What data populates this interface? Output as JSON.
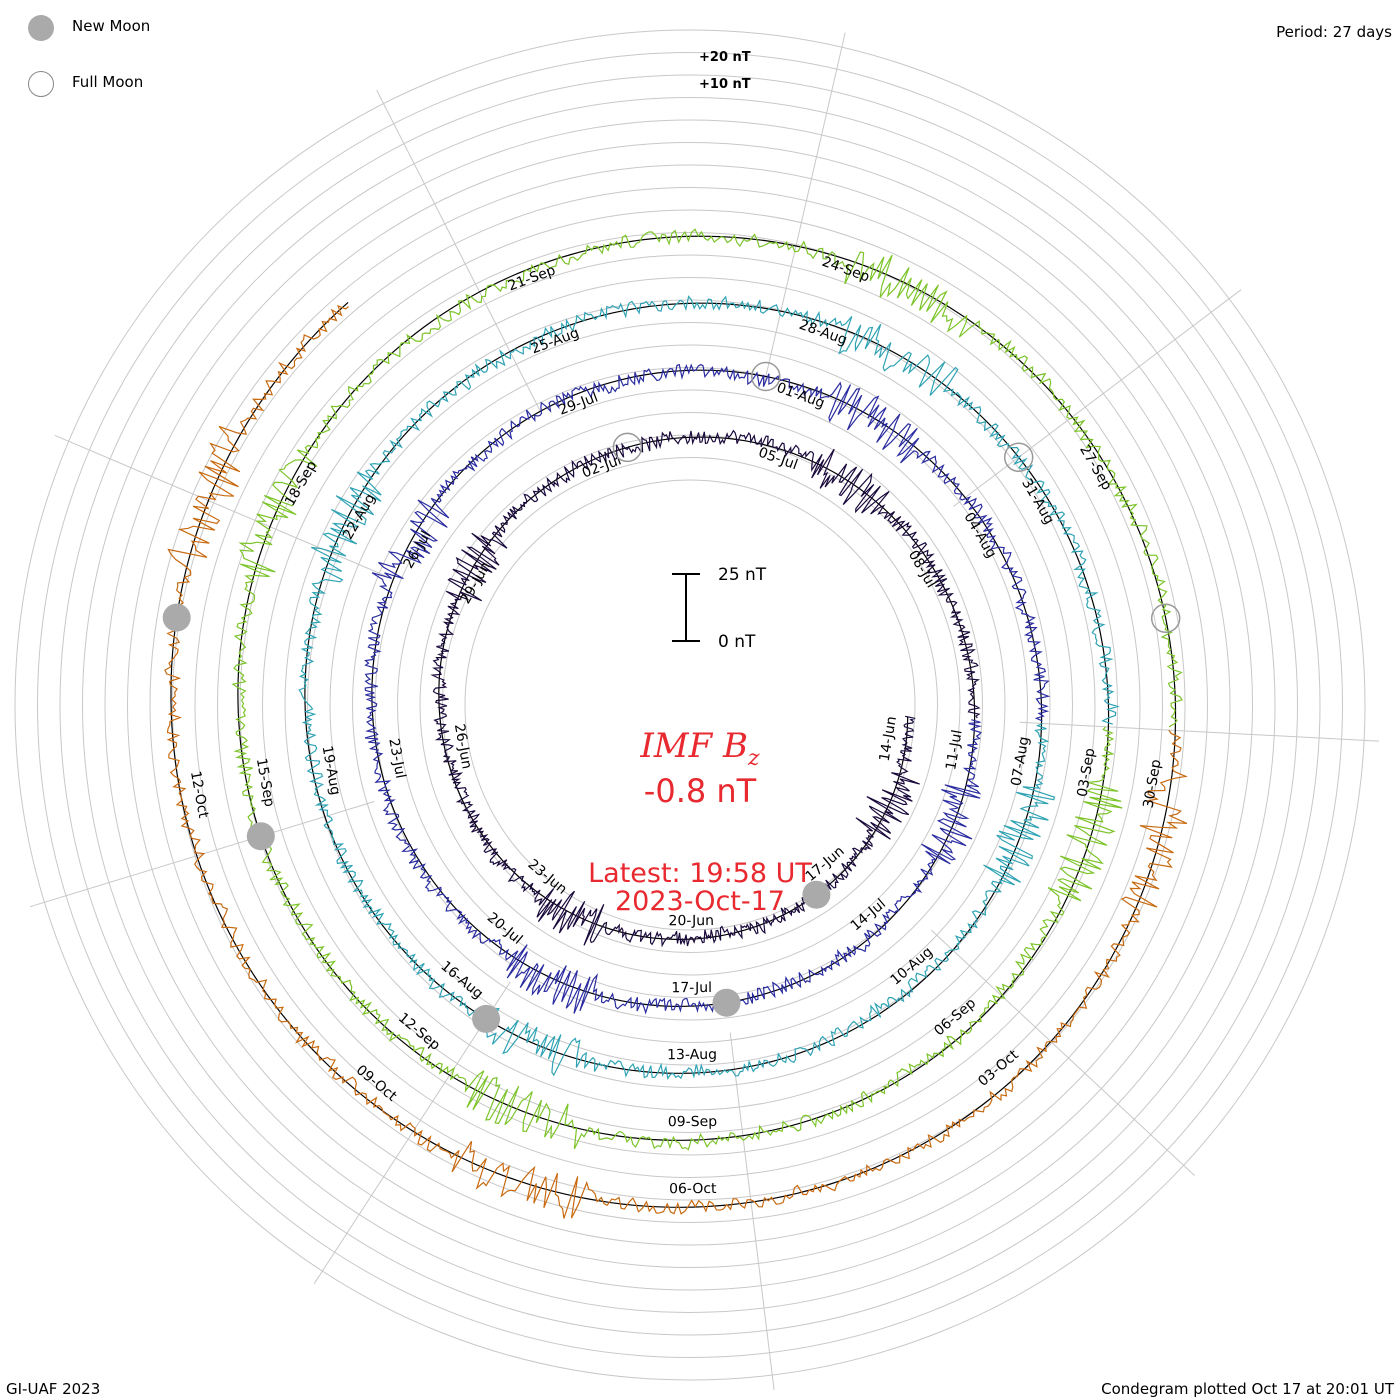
{
  "header": {
    "period_text": "Period: 27 days"
  },
  "legend": {
    "new_moon": {
      "label": "New Moon",
      "icon": "filled-circle-icon",
      "color": "#aaaaaa"
    },
    "full_moon": {
      "label": "Full Moon",
      "icon": "hollow-circle-icon",
      "color": "#888888"
    }
  },
  "footer": {
    "credit": "GI-UAF 2023",
    "plotted": "Condegram plotted Oct 17 at 20:01 UT"
  },
  "center": {
    "title_prefix": "IMF B",
    "title_sub": "z",
    "value": "-0.8 nT",
    "latest_time": "Latest: 19:58 UT",
    "latest_date": "2023-Oct-17"
  },
  "chart_data": {
    "type": "line",
    "subtype": "spiral condegram",
    "quantity": "IMF Bz",
    "unit": "nT",
    "period_days": 27,
    "start_date": "2023-06-14",
    "end_date": "2023-10-17",
    "scale_bar": {
      "top_label": "25 nT",
      "bottom_label": "0 nT",
      "value_nT": 25
    },
    "ring_scale_labels": [
      "+20 nT",
      "+10 nT"
    ],
    "latest_value_nT": -0.8,
    "series": [
      {
        "name": "",
        "days": [
          0,
          27
        ],
        "color": "#1a0a3c",
        "date_labels": [
          "14-Jun",
          "17-Jun",
          "20-Jun",
          "23-Jun",
          "26-Jun",
          "29-Jun",
          "02-Jul",
          "05-Jul",
          "08-Jul"
        ]
      },
      {
        "name": "",
        "days": [
          27,
          54
        ],
        "color": "#2a2ca0",
        "date_labels": [
          "11-Jul",
          "14-Jul",
          "17-Jul",
          "20-Jul",
          "23-Jul",
          "26-Jul",
          "29-Jul",
          "01-Aug",
          "04-Aug"
        ]
      },
      {
        "name": "",
        "days": [
          54,
          81
        ],
        "color": "#2fa3b4",
        "date_labels": [
          "07-Aug",
          "10-Aug",
          "13-Aug",
          "16-Aug",
          "19-Aug",
          "22-Aug",
          "25-Aug",
          "28-Aug",
          "31-Aug"
        ]
      },
      {
        "name": "",
        "days": [
          81,
          108
        ],
        "color": "#7cc42a",
        "date_labels": [
          "03-Sep",
          "06-Sep",
          "09-Sep",
          "12-Sep",
          "15-Sep",
          "18-Sep",
          "21-Sep",
          "24-Sep",
          "27-Sep"
        ]
      },
      {
        "name": "",
        "days": [
          108,
          125
        ],
        "color": "#c86a10",
        "date_labels": [
          "30-Sep",
          "03-Oct",
          "06-Oct",
          "09-Oct",
          "12-Oct"
        ]
      }
    ],
    "new_moon_dates": [
      "2023-06-18",
      "2023-07-17",
      "2023-08-16",
      "2023-09-15",
      "2023-10-14"
    ],
    "full_moon_dates": [
      "2023-07-03",
      "2023-08-01",
      "2023-08-31",
      "2023-09-29"
    ],
    "grid": true
  }
}
